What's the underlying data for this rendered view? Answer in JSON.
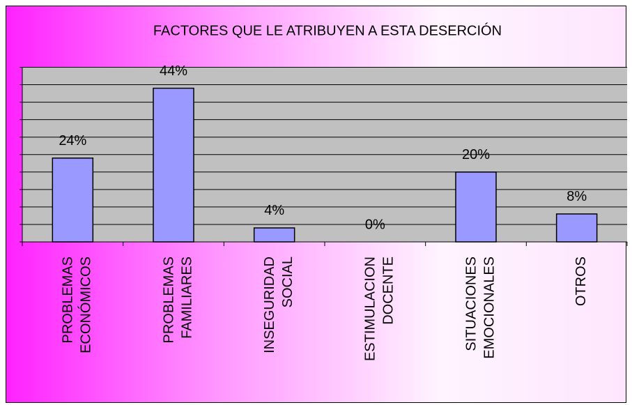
{
  "chart_data": {
    "type": "bar",
    "title": "FACTORES QUE LE ATRIBUYEN A ESTA DESERCIÓN",
    "categories": [
      [
        "PROBLEMAS",
        "ECONÓMICOS"
      ],
      [
        "PROBLEMAS",
        "FAMILIARES"
      ],
      [
        "INSEGURIDAD",
        "SOCIAL"
      ],
      [
        "ESTIMULACION",
        "DOCENTE"
      ],
      [
        "SITUACIONES",
        "EMOCIONALES"
      ],
      [
        "OTROS"
      ]
    ],
    "values": [
      24,
      44,
      4,
      0,
      20,
      8
    ],
    "value_labels": [
      "24%",
      "44%",
      "4%",
      "0%",
      "20%",
      "8%"
    ],
    "color": "#9999ff",
    "ylim": [
      0,
      50
    ],
    "yticks": [
      0,
      5,
      10,
      15,
      20,
      25,
      30,
      35,
      40,
      45,
      50
    ],
    "grid": true
  }
}
